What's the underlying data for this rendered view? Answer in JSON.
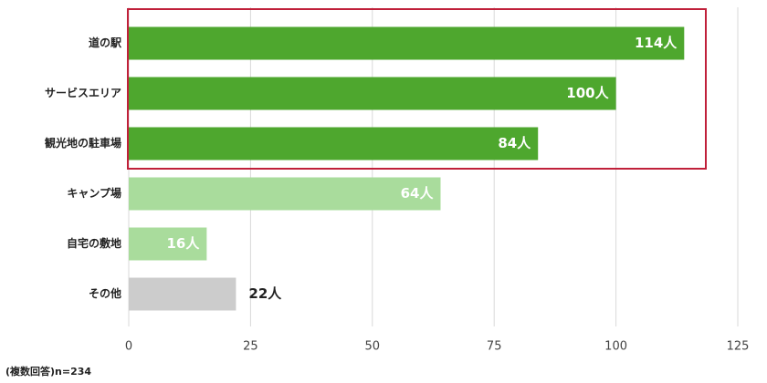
{
  "chart_data": {
    "type": "hbar",
    "categories": [
      "道の駅",
      "サービスエリア",
      "観光地の駐車場",
      "キャンプ場",
      "自宅の敷地",
      "その他"
    ],
    "values": [
      114,
      100,
      84,
      64,
      16,
      22
    ],
    "value_labels": [
      "114人",
      "100人",
      "84人",
      "64人",
      "16人",
      "22人"
    ],
    "colors": [
      "#4ea72e",
      "#4ea72e",
      "#4ea72e",
      "#a9dc9c",
      "#a9dc9c",
      "#cccccc"
    ],
    "xlim": [
      0,
      125
    ],
    "xticks": [
      0,
      25,
      50,
      75,
      100,
      125
    ],
    "grid": true,
    "note": "(複数回答)n=234"
  }
}
